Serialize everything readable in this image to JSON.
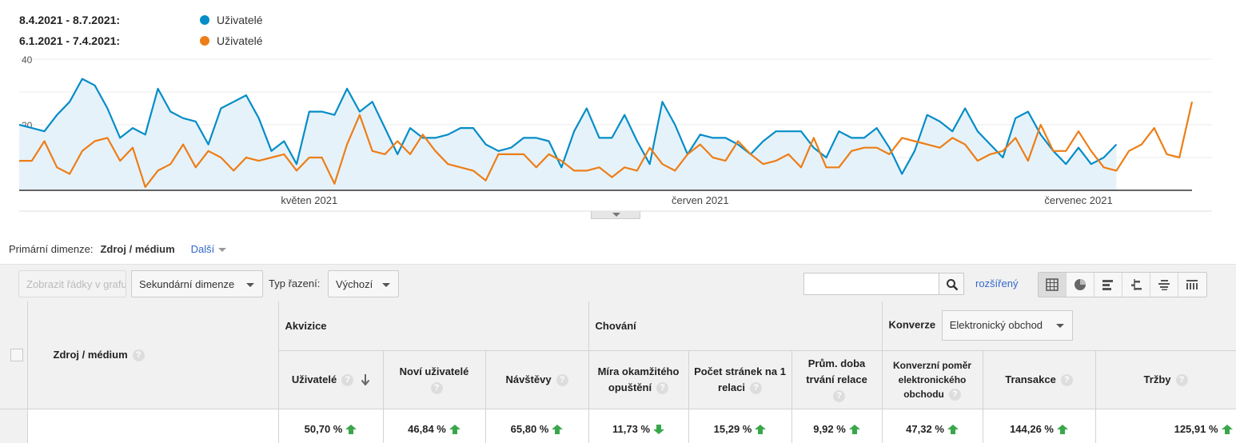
{
  "legend": [
    {
      "range": "8.4.2021 - 8.7.2021:",
      "label": "Uživatelé",
      "color": "#058dc7"
    },
    {
      "range": "6.1.2021 - 7.4.2021:",
      "label": "Uživatelé",
      "color": "#ed7e17"
    }
  ],
  "chart_data": {
    "type": "line",
    "ylim": [
      0,
      40
    ],
    "yticks": [
      "40",
      "20"
    ],
    "xticks": [
      {
        "label": "květen 2021",
        "index": 23
      },
      {
        "label": "červen 2021",
        "index": 54
      },
      {
        "label": "červenec 2021",
        "index": 84
      }
    ],
    "series": [
      {
        "name": "Uživatelé",
        "period": "8.4.2021 - 8.7.2021",
        "color": "#058dc7",
        "fill": true,
        "values": [
          20,
          19,
          18,
          23,
          27,
          34,
          32,
          25,
          16,
          19,
          17,
          31,
          24,
          22,
          21,
          14,
          25,
          27,
          29,
          22,
          12,
          15,
          8,
          24,
          24,
          23,
          31,
          24,
          27,
          19,
          11,
          19,
          16,
          16,
          17,
          19,
          19,
          14,
          12,
          13,
          16,
          16,
          15,
          7,
          18,
          25,
          16,
          16,
          23,
          15,
          8,
          27,
          20,
          11,
          17,
          16,
          16,
          14,
          11,
          15,
          18,
          18,
          18,
          13,
          10,
          18,
          16,
          16,
          19,
          13,
          5,
          12,
          23,
          21,
          18,
          25,
          18,
          14,
          10,
          22,
          24,
          17,
          12,
          8,
          13,
          8,
          10,
          14
        ]
      },
      {
        "name": "Uživatelé",
        "period": "6.1.2021 - 7.4.2021",
        "color": "#ed7e17",
        "fill": false,
        "values": [
          9,
          9,
          15,
          7,
          5,
          12,
          15,
          16,
          9,
          13,
          1,
          6,
          8,
          14,
          7,
          12,
          10,
          6,
          10,
          9,
          10,
          11,
          6,
          10,
          10,
          2,
          14,
          23,
          12,
          11,
          15,
          11,
          17,
          12,
          8,
          7,
          6,
          3,
          11,
          11,
          11,
          7,
          11,
          9,
          6,
          6,
          7,
          4,
          7,
          6,
          13,
          8,
          6,
          11,
          14,
          10,
          9,
          15,
          11,
          8,
          9,
          11,
          7,
          16,
          7,
          7,
          12,
          13,
          13,
          11,
          16,
          15,
          14,
          13,
          16,
          14,
          9,
          11,
          12,
          16,
          9,
          20,
          12,
          12,
          18,
          12,
          7,
          6,
          12,
          14,
          19,
          11,
          10,
          27
        ]
      }
    ]
  },
  "primary_dimension": {
    "label": "Primární dimenze:",
    "current": "Zdroj / médium",
    "more": "Další"
  },
  "toolbar": {
    "plot_rows": "Zobrazit řádky v grafu",
    "secondary_dimension": "Sekundární dimenze",
    "sort_label": "Typ řazení:",
    "sort_value": "Výchozí",
    "search_placeholder": "",
    "advanced": "rozšířený",
    "views": [
      "grid-view-icon",
      "pie-view-icon",
      "bar-view-icon",
      "compare-view-icon",
      "term-cloud-view-icon",
      "pivot-view-icon"
    ]
  },
  "table": {
    "dimension_header": "Zdroj / médium",
    "groups": {
      "acquisition": "Akvizice",
      "behavior": "Chování",
      "conversions": "Konverze",
      "conversions_select": "Elektronický obchod"
    },
    "metrics": [
      {
        "label": "Uživatelé",
        "value": "50,70 %",
        "trend": "up"
      },
      {
        "label": "Noví uživatelé",
        "value": "46,84 %",
        "trend": "up"
      },
      {
        "label": "Návštěvy",
        "value": "65,80 %",
        "trend": "up"
      },
      {
        "label": "Míra okamžitého opuštění",
        "value": "11,73 %",
        "trend": "down"
      },
      {
        "label": "Počet stránek na 1 relaci",
        "value": "15,29 %",
        "trend": "up"
      },
      {
        "label": "Prům. doba trvání relace",
        "value": "9,92 %",
        "trend": "up"
      },
      {
        "label": "Konverzní poměr elektronického obchodu",
        "value": "47,32 %",
        "trend": "up"
      },
      {
        "label": "Transakce",
        "value": "144,26 %",
        "trend": "up"
      },
      {
        "label": "Tržby",
        "value": "125,91 %",
        "trend": "up"
      }
    ]
  }
}
